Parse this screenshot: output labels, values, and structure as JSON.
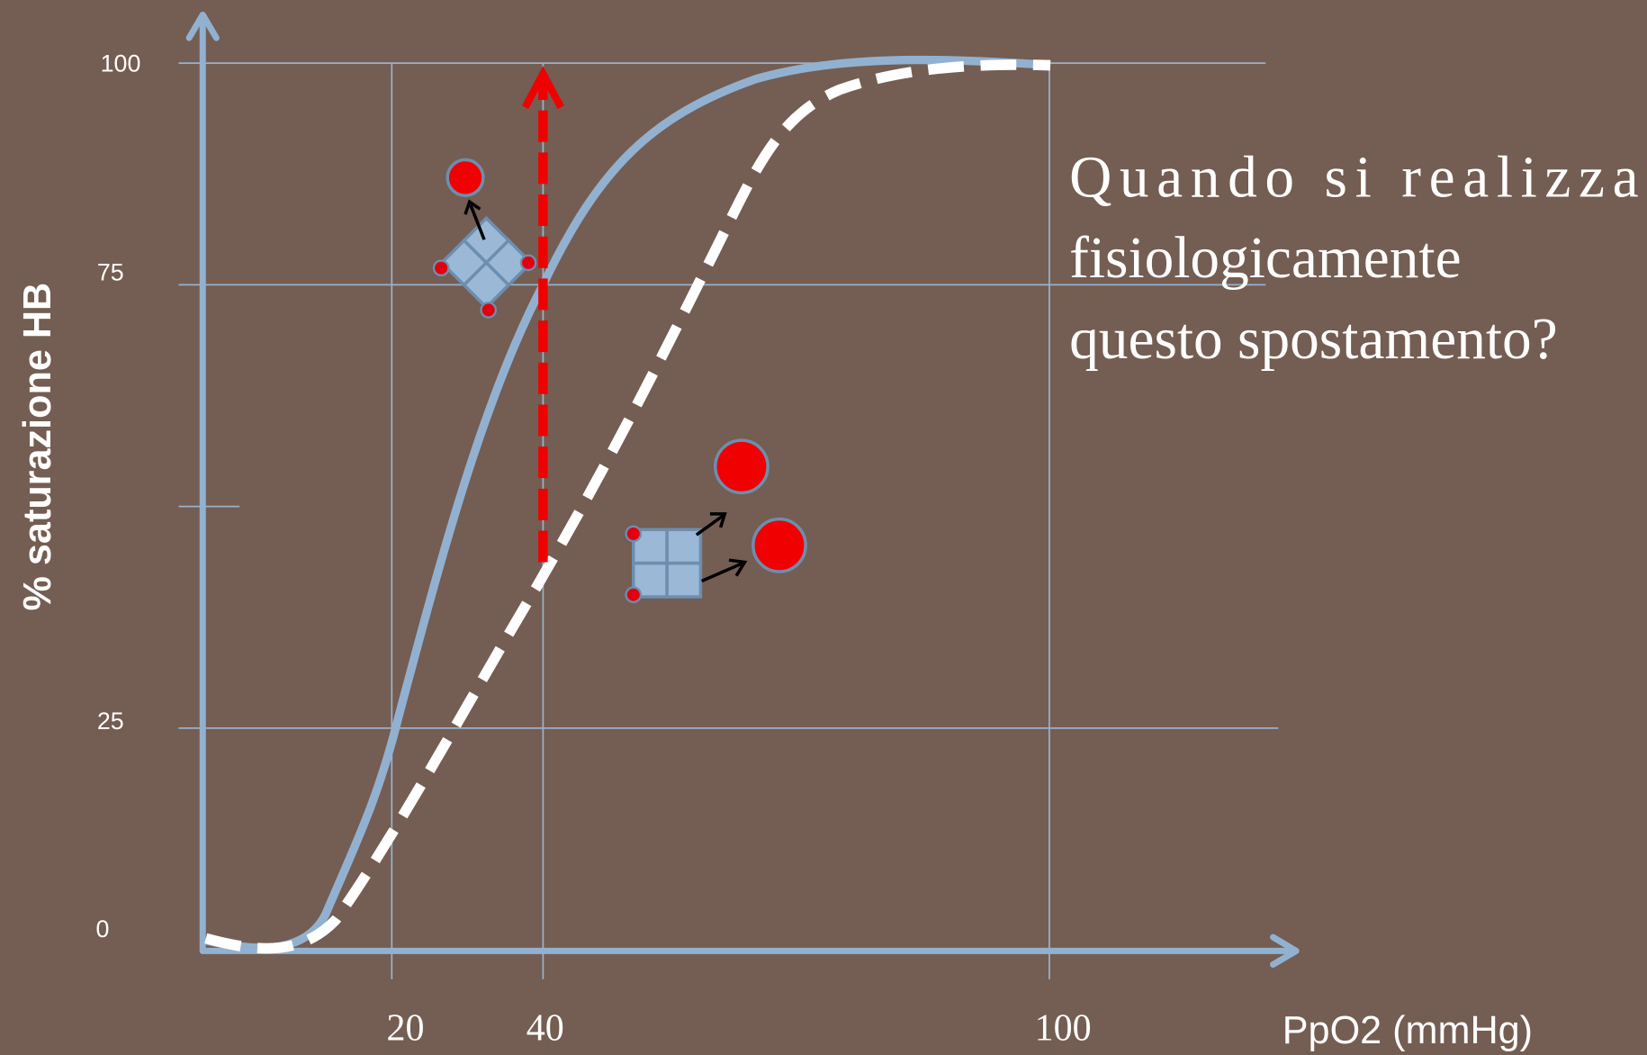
{
  "y_axis": {
    "title": "% saturazione HB",
    "labels": [
      "100",
      "75",
      "25",
      "0"
    ]
  },
  "x_axis": {
    "title": "PpO2 (mmHg)",
    "labels": [
      "20",
      "40",
      "100"
    ]
  },
  "question": {
    "lines": [
      "Quando si realizza",
      "fisiologicamente",
      "questo spostamento?"
    ]
  }
}
